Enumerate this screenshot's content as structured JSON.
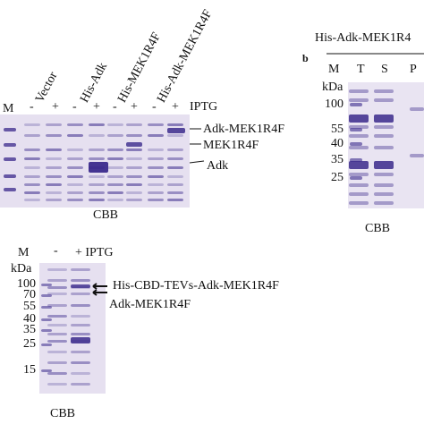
{
  "panel_a": {
    "lane_marker": "M",
    "samples": [
      "Vector",
      "His-Adk",
      "His-MEK1R4F",
      "His-Adk-MEK1R4F"
    ],
    "minus": "-",
    "plus": "+",
    "inducer": "IPTG",
    "bands": [
      "Adk-MEK1R4F",
      "MEK1R4F",
      "Adk"
    ],
    "stain": "CBB"
  },
  "panel_b": {
    "title": "His-Adk-MEK1R4",
    "letter": "b",
    "lanes": [
      "M",
      "T",
      "S",
      "P"
    ],
    "unit": "kDa",
    "markers": [
      100,
      55,
      40,
      35,
      25
    ],
    "stain": "CBB"
  },
  "panel_c": {
    "lane_marker": "M",
    "minus": "-",
    "plus_inducer": "+ IPTG",
    "unit": "kDa",
    "markers": [
      100,
      70,
      55,
      40,
      35,
      25,
      15
    ],
    "bands": [
      "His-CBD-TEVs-Adk-MEK1R4F",
      "Adk-MEK1R4F"
    ],
    "stain": "CBB"
  }
}
